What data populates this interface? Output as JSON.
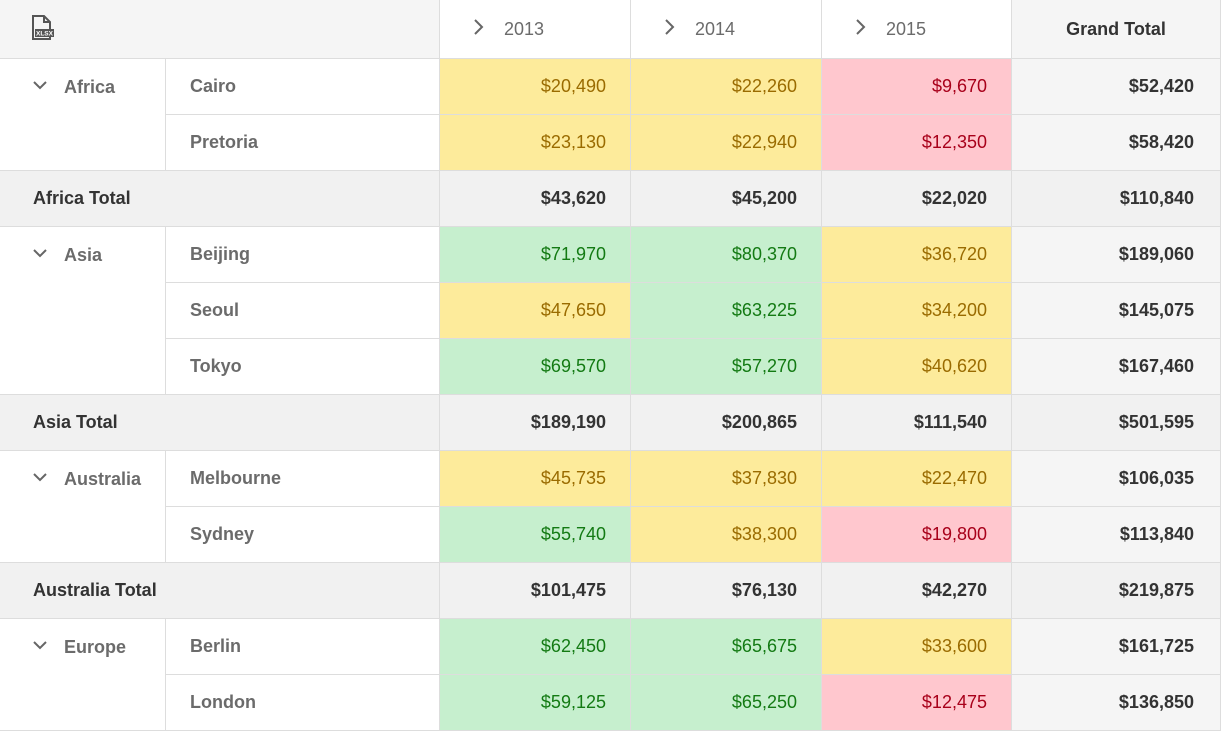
{
  "header": {
    "export_icon": "excel-export-icon",
    "years": [
      {
        "label": "2013",
        "icon": "chevron-right-icon"
      },
      {
        "label": "2014",
        "icon": "chevron-right-icon"
      },
      {
        "label": "2015",
        "icon": "chevron-right-icon"
      }
    ],
    "grand_total_label": "Grand Total"
  },
  "colors": {
    "yellow_bg": "#fdeb9b",
    "yellow_text": "#9a6b00",
    "green_bg": "#c6efce",
    "green_text": "#137a13",
    "red_bg": "#ffc7ce",
    "red_text": "#a8001a"
  },
  "regions": [
    {
      "name": "Africa",
      "icon": "chevron-down-icon",
      "cities": [
        {
          "name": "Cairo",
          "values": [
            "$20,490",
            "$22,260",
            "$9,670"
          ],
          "levels": [
            "y",
            "y",
            "r"
          ],
          "grand_total": "$52,420"
        },
        {
          "name": "Pretoria",
          "values": [
            "$23,130",
            "$22,940",
            "$12,350"
          ],
          "levels": [
            "y",
            "y",
            "r"
          ],
          "grand_total": "$58,420"
        }
      ],
      "total": {
        "label": "Africa Total",
        "values": [
          "$43,620",
          "$45,200",
          "$22,020"
        ],
        "grand_total": "$110,840"
      }
    },
    {
      "name": "Asia",
      "icon": "chevron-down-icon",
      "cities": [
        {
          "name": "Beijing",
          "values": [
            "$71,970",
            "$80,370",
            "$36,720"
          ],
          "levels": [
            "g",
            "g",
            "y"
          ],
          "grand_total": "$189,060"
        },
        {
          "name": "Seoul",
          "values": [
            "$47,650",
            "$63,225",
            "$34,200"
          ],
          "levels": [
            "y",
            "g",
            "y"
          ],
          "grand_total": "$145,075"
        },
        {
          "name": "Tokyo",
          "values": [
            "$69,570",
            "$57,270",
            "$40,620"
          ],
          "levels": [
            "g",
            "g",
            "y"
          ],
          "grand_total": "$167,460"
        }
      ],
      "total": {
        "label": "Asia Total",
        "values": [
          "$189,190",
          "$200,865",
          "$111,540"
        ],
        "grand_total": "$501,595"
      }
    },
    {
      "name": "Australia",
      "icon": "chevron-down-icon",
      "cities": [
        {
          "name": "Melbourne",
          "values": [
            "$45,735",
            "$37,830",
            "$22,470"
          ],
          "levels": [
            "y",
            "y",
            "y"
          ],
          "grand_total": "$106,035"
        },
        {
          "name": "Sydney",
          "values": [
            "$55,740",
            "$38,300",
            "$19,800"
          ],
          "levels": [
            "g",
            "y",
            "r"
          ],
          "grand_total": "$113,840"
        }
      ],
      "total": {
        "label": "Australia Total",
        "values": [
          "$101,475",
          "$76,130",
          "$42,270"
        ],
        "grand_total": "$219,875"
      }
    },
    {
      "name": "Europe",
      "icon": "chevron-down-icon",
      "cities": [
        {
          "name": "Berlin",
          "values": [
            "$62,450",
            "$65,675",
            "$33,600"
          ],
          "levels": [
            "g",
            "g",
            "y"
          ],
          "grand_total": "$161,725"
        },
        {
          "name": "London",
          "values": [
            "$59,125",
            "$65,250",
            "$12,475"
          ],
          "levels": [
            "g",
            "g",
            "r"
          ],
          "grand_total": "$136,850"
        }
      ]
    }
  ]
}
